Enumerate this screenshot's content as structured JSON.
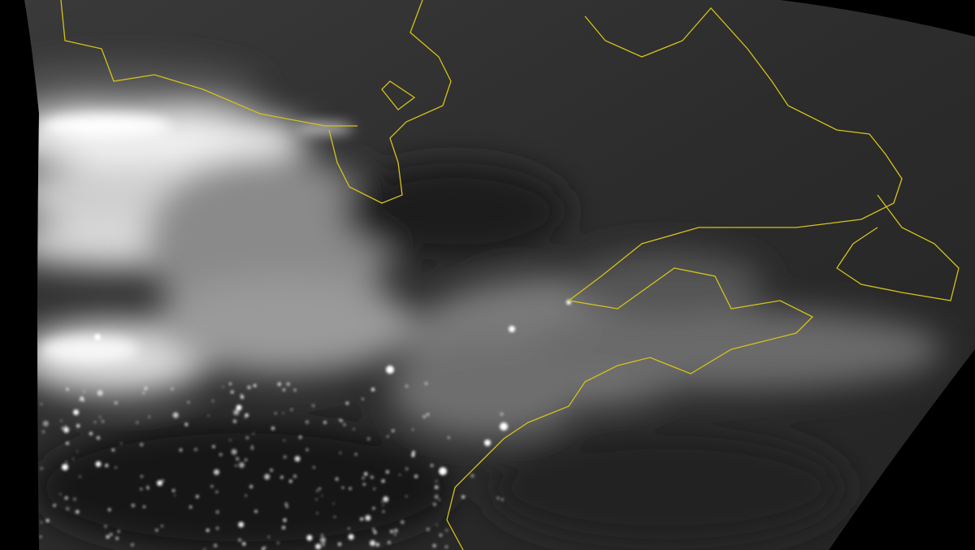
{
  "image": {
    "kind": "night-time satellite swath",
    "colors": {
      "background": "#000000",
      "surface_dark": "#2a2a2a",
      "cloud": "#e8e8e8",
      "city_lights": "#ffffff",
      "coastline": "#d4c21a"
    }
  }
}
